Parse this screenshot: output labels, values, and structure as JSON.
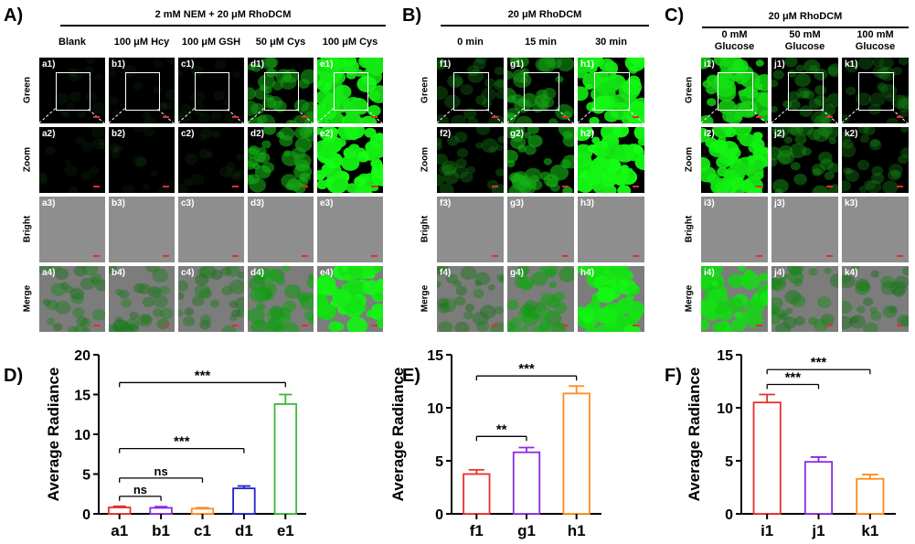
{
  "panels": {
    "A": {
      "label": "A)",
      "header": "2 mM NEM + 20 μM RhoDCM",
      "columns": [
        "Blank",
        "100 μM Hcy",
        "100 μM GSH",
        "50 μM Cys",
        "100 μM Cys"
      ],
      "rows": [
        "Green",
        "Zoom",
        "Bright",
        "Merge"
      ],
      "tiles": [
        [
          "a1)",
          "b1)",
          "c1)",
          "d1)",
          "e1)"
        ],
        [
          "a2)",
          "b2)",
          "c2)",
          "d2)",
          "e2)"
        ],
        [
          "a3)",
          "b3)",
          "c3)",
          "d3)",
          "e3)"
        ],
        [
          "a4)",
          "b4)",
          "c4)",
          "d4)",
          "e4)"
        ]
      ]
    },
    "B": {
      "label": "B)",
      "header": "20 μM RhoDCM",
      "columns": [
        "0 min",
        "15 min",
        "30 min"
      ],
      "rows": [
        "Green",
        "Zoom",
        "Bright",
        "Merge"
      ],
      "tiles": [
        [
          "f1)",
          "g1)",
          "h1)"
        ],
        [
          "f2)",
          "g2)",
          "h2)"
        ],
        [
          "f3)",
          "g3)",
          "h3)"
        ],
        [
          "f4)",
          "g4)",
          "h4)"
        ]
      ]
    },
    "C": {
      "label": "C)",
      "header": "20 μM RhoDCM",
      "columns": [
        "0 mM\nGlucose",
        "50 mM\nGlucose",
        "100 mM\nGlucose"
      ],
      "rows": [
        "Green",
        "Zoom",
        "Bright",
        "Merge"
      ],
      "tiles": [
        [
          "i1)",
          "j1)",
          "k1)"
        ],
        [
          "i2)",
          "j2)",
          "k2)"
        ],
        [
          "i3)",
          "j3)",
          "k3)"
        ],
        [
          "i4)",
          "j4)",
          "k4)"
        ]
      ]
    }
  },
  "chart_data": [
    {
      "panel": "D)",
      "type": "bar",
      "categories": [
        "a1",
        "b1",
        "c1",
        "d1",
        "e1"
      ],
      "values": [
        0.8,
        0.75,
        0.65,
        3.2,
        13.8
      ],
      "errors": [
        0.15,
        0.15,
        0.12,
        0.3,
        1.2
      ],
      "colors": [
        "#e8302a",
        "#8a2be2",
        "#ff8c1a",
        "#2222cc",
        "#3cb83c"
      ],
      "ylabel": "Average Radiance",
      "ylim": [
        0,
        20
      ],
      "yticks": [
        0,
        5,
        10,
        15,
        20
      ],
      "significance": [
        {
          "from": 0,
          "to": 1,
          "label": "ns",
          "y": 2.2
        },
        {
          "from": 0,
          "to": 2,
          "label": "ns",
          "y": 4.5
        },
        {
          "from": 0,
          "to": 3,
          "label": "***",
          "y": 8.2
        },
        {
          "from": 0,
          "to": 4,
          "label": "***",
          "y": 16.5
        }
      ]
    },
    {
      "panel": "E)",
      "type": "bar",
      "categories": [
        "f1",
        "g1",
        "h1"
      ],
      "values": [
        3.75,
        5.8,
        11.35
      ],
      "errors": [
        0.4,
        0.45,
        0.7
      ],
      "colors": [
        "#e8302a",
        "#8a2be2",
        "#ff8c1a"
      ],
      "ylabel": "Average Radiance",
      "ylim": [
        0,
        15
      ],
      "yticks": [
        0,
        5,
        10,
        15
      ],
      "significance": [
        {
          "from": 0,
          "to": 1,
          "label": "**",
          "y": 7.3
        },
        {
          "from": 0,
          "to": 2,
          "label": "***",
          "y": 13.0
        }
      ]
    },
    {
      "panel": "F)",
      "type": "bar",
      "categories": [
        "i1",
        "j1",
        "k1"
      ],
      "values": [
        10.5,
        4.9,
        3.3
      ],
      "errors": [
        0.75,
        0.45,
        0.4
      ],
      "colors": [
        "#e8302a",
        "#8a2be2",
        "#ff8c1a"
      ],
      "ylabel": "Average Radiance",
      "ylim": [
        0,
        15
      ],
      "yticks": [
        0,
        5,
        10,
        15
      ],
      "significance": [
        {
          "from": 0,
          "to": 1,
          "label": "***",
          "y": 12.2
        },
        {
          "from": 0,
          "to": 2,
          "label": "***",
          "y": 13.6
        }
      ]
    }
  ]
}
